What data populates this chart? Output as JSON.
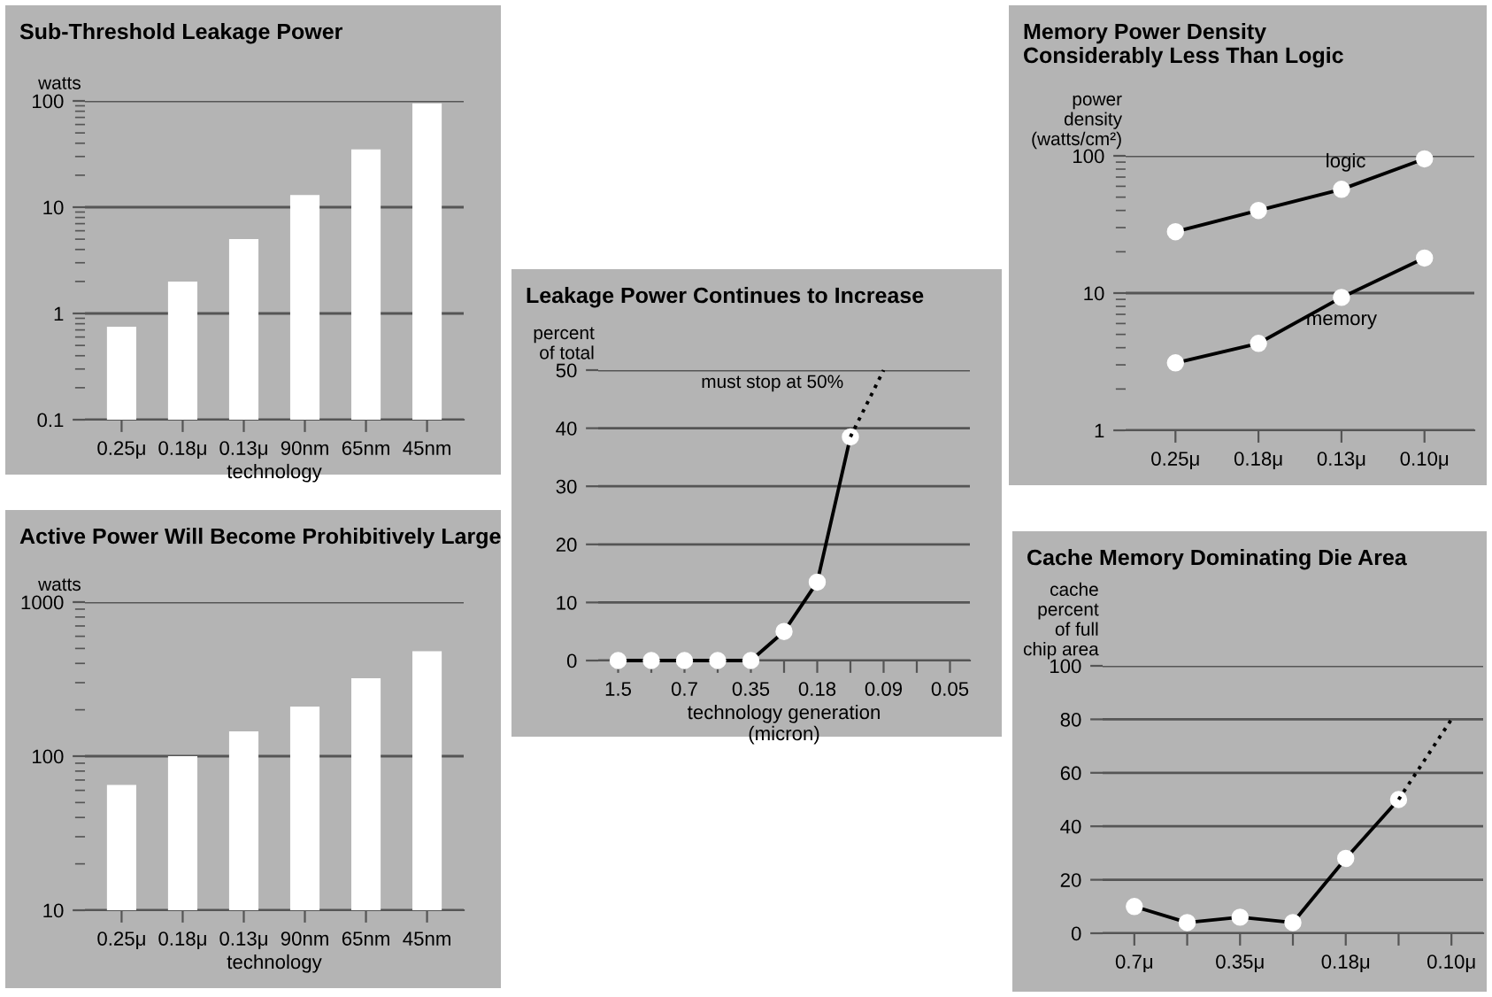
{
  "chart_data": [
    {
      "type": "bar",
      "title": "Sub-Threshold Leakage Power",
      "ylabel": "watts",
      "xlabel": "technology",
      "categories": [
        "0.25μ",
        "0.18μ",
        "0.13μ",
        "90nm",
        "65nm",
        "45nm"
      ],
      "values": [
        0.75,
        2,
        5,
        13,
        35,
        95
      ],
      "color": "#ffffff",
      "log": true,
      "ylim": [
        0.1,
        100
      ],
      "yticks": [
        0.1,
        1,
        10,
        100
      ],
      "grid": "y"
    },
    {
      "type": "bar",
      "title": "Active Power Will Become Prohibitively Large",
      "ylabel": "watts",
      "xlabel": "technology",
      "categories": [
        "0.25μ",
        "0.18μ",
        "0.13μ",
        "90nm",
        "65nm",
        "45nm"
      ],
      "values": [
        65,
        100,
        145,
        210,
        320,
        480
      ],
      "color": "#ffffff",
      "log": true,
      "ylim": [
        10,
        1000
      ],
      "yticks": [
        10,
        100,
        1000
      ],
      "grid": "y"
    },
    {
      "type": "line",
      "title": "Leakage Power Continues to Increase",
      "ylabel": "percent\nof total",
      "xlabel": "technology generation\n(micron)",
      "categories": [
        "1.5",
        null,
        "0.7",
        null,
        "0.35",
        null,
        "0.18",
        null,
        "0.09",
        null,
        "0.05"
      ],
      "series": [
        {
          "color": "#000000",
          "values": [
            0,
            0,
            0,
            0,
            0,
            5,
            13.5,
            38.5,
            null,
            null,
            null
          ],
          "marker": "circle",
          "line_style": "solid"
        },
        {
          "color": "#000000",
          "values": [
            null,
            null,
            null,
            null,
            null,
            null,
            null,
            38.5,
            50,
            null,
            null
          ],
          "marker": "none",
          "line_style": "dotted"
        }
      ],
      "annotations": [
        "must stop at 50%"
      ],
      "ylim": [
        0,
        50
      ],
      "yticks": [
        0,
        10,
        20,
        30,
        40,
        50
      ],
      "grid": "y"
    },
    {
      "type": "line",
      "title": "Memory Power Density\nConsiderably Less Than Logic",
      "ylabel": "power\ndensity\n(watts/cm²)",
      "categories": [
        "0.25μ",
        "0.18μ",
        "0.13μ",
        "0.10μ"
      ],
      "series": [
        {
          "name": "logic",
          "color": "#000000",
          "values": [
            28,
            40,
            57,
            95
          ],
          "marker": "circle",
          "line_style": "solid"
        },
        {
          "name": "memory",
          "color": "#000000",
          "values": [
            3.1,
            4.3,
            9.3,
            18
          ],
          "marker": "circle",
          "line_style": "solid"
        }
      ],
      "log": true,
      "ylim": [
        1,
        100
      ],
      "yticks": [
        1,
        10,
        100
      ],
      "grid": "y"
    },
    {
      "type": "line",
      "title": "Cache Memory Dominating Die Area",
      "ylabel": "cache\npercent\nof full\nchip area",
      "categories": [
        "0.7μ",
        null,
        "0.35μ",
        null,
        "0.18μ",
        null,
        "0.10μ"
      ],
      "series": [
        {
          "color": "#000000",
          "values": [
            10,
            4,
            6,
            4,
            28,
            50,
            null
          ],
          "marker": "circle",
          "line_style": "solid"
        },
        {
          "color": "#000000",
          "values": [
            null,
            null,
            null,
            null,
            null,
            50,
            80
          ],
          "marker": "none",
          "line_style": "dotted"
        }
      ],
      "ylim": [
        0,
        100
      ],
      "yticks": [
        0,
        20,
        40,
        60,
        80,
        100
      ],
      "grid": "y"
    }
  ]
}
